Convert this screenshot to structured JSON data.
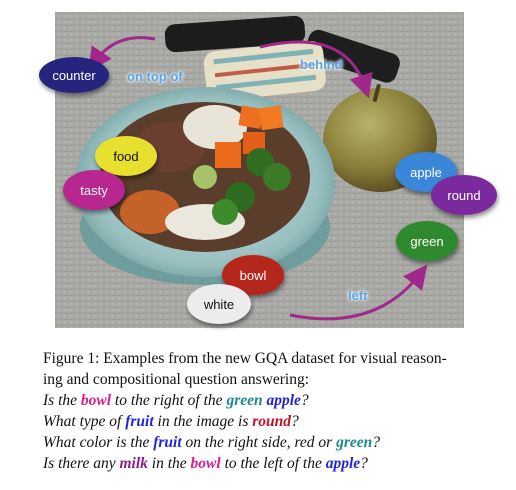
{
  "figure": {
    "relations": [
      "on top of",
      "behind",
      "left"
    ],
    "objects": [
      "counter",
      "food",
      "tasty",
      "apple",
      "round",
      "green",
      "bowl",
      "white"
    ],
    "colors": {
      "counter": "#25257e",
      "food": "#e8e02e",
      "tasty": "#b8268f",
      "apple": "#3a86d8",
      "round": "#7b2a9e",
      "green": "#2f8a2f",
      "bowl": "#b5271c",
      "white": "#ececec",
      "relation_text": "#5aa6ea",
      "arrow": "#a0288a"
    }
  },
  "caption": {
    "line1": "Figure 1: Examples from the new GQA dataset for visual reason-",
    "line2": "ing and compositional question answering:",
    "q1": [
      "Is the ",
      "bowl",
      " to the right of the ",
      "green",
      " ",
      "apple",
      "?"
    ],
    "q2": [
      "What type of ",
      "fruit",
      " in the image is ",
      "round",
      "?"
    ],
    "q3": [
      "What color is the ",
      "fruit",
      " on the right side, red or ",
      "green",
      "?"
    ],
    "q4": [
      "Is there any ",
      "milk",
      " in the ",
      "bowl",
      " to the left of the ",
      "apple",
      "?"
    ],
    "highlight_colors": {
      "bowl": "#d61f8c",
      "green": "#1f8a8a",
      "apple": "#2323d6",
      "fruit": "#2323d6",
      "round": "#c0142a",
      "milk": "#8a1f8a"
    }
  }
}
